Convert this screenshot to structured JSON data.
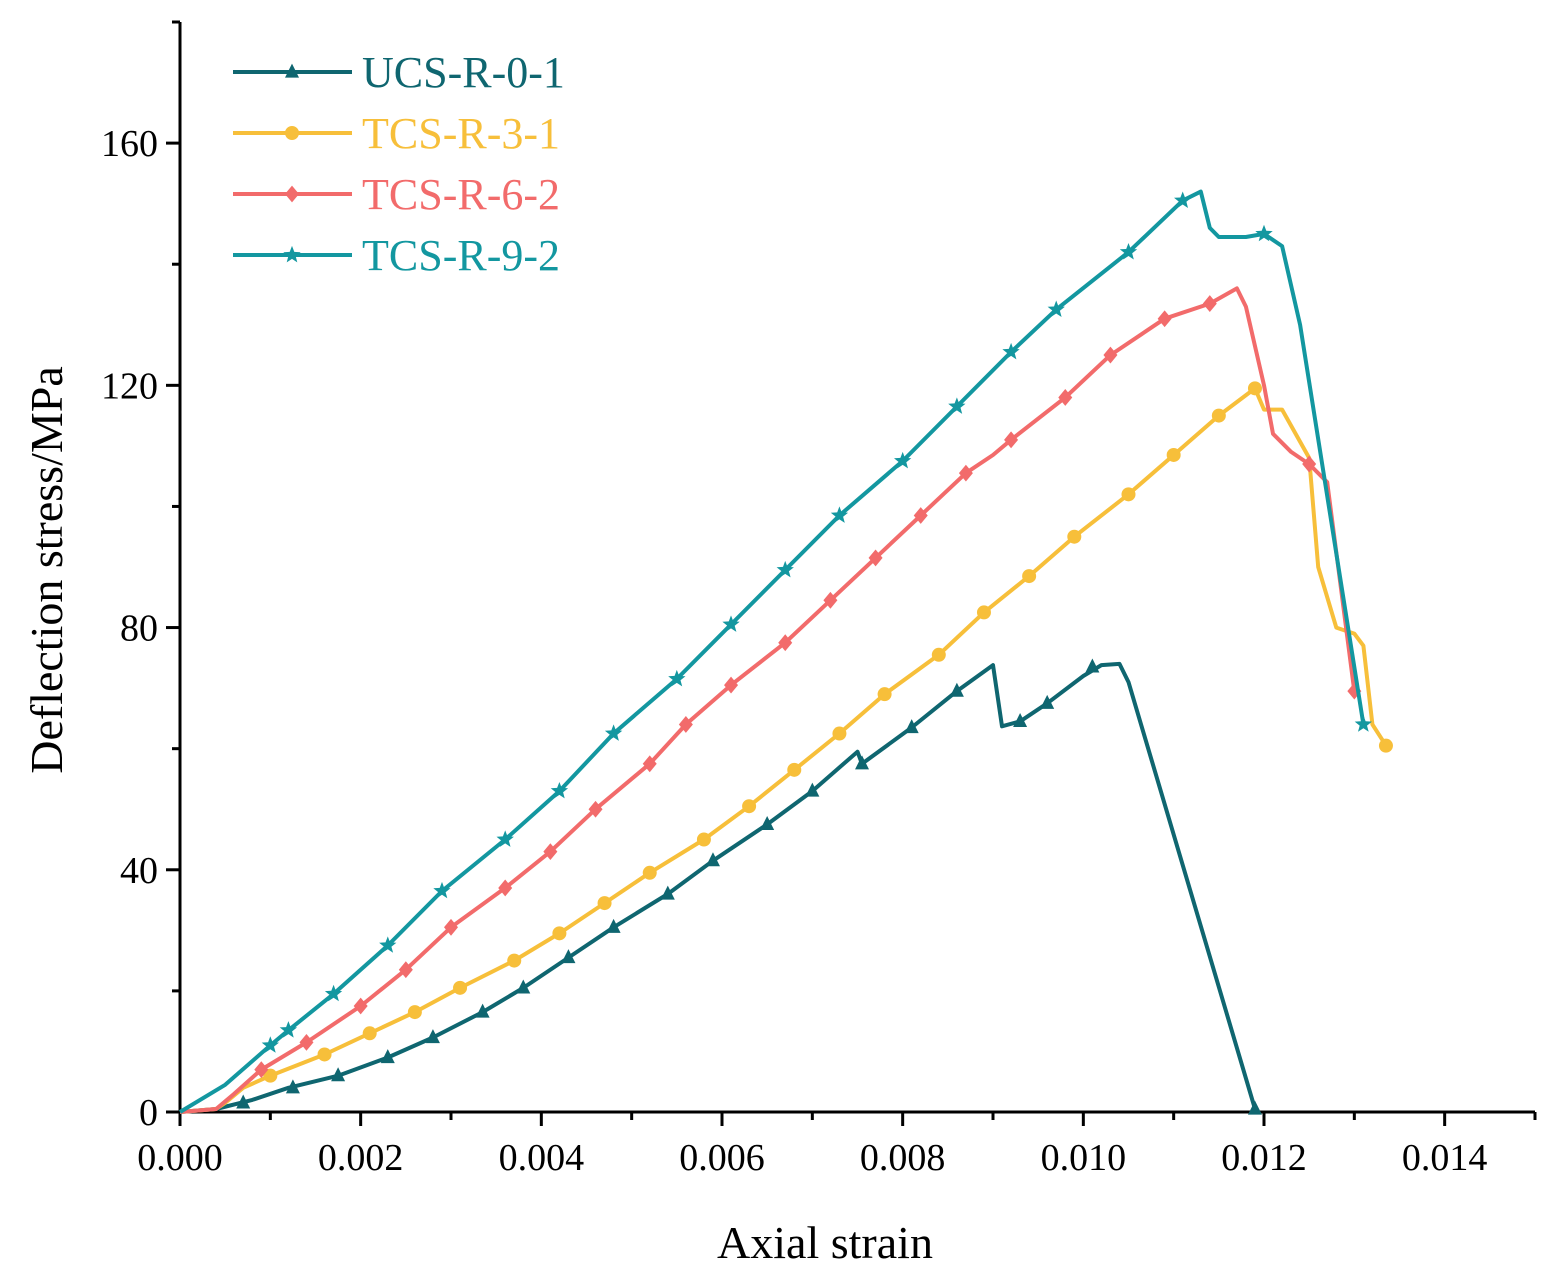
{
  "chart_data": {
    "type": "line",
    "title": "",
    "xlabel": "Axial strain",
    "ylabel": "Deflection stress/MPa",
    "xlim": [
      0,
      0.015
    ],
    "ylim": [
      0,
      180
    ],
    "x_ticks": [
      0.0,
      0.002,
      0.004,
      0.006,
      0.008,
      0.01,
      0.012,
      0.014
    ],
    "x_tick_labels": [
      "0.000",
      "0.002",
      "0.004",
      "0.006",
      "0.008",
      "0.010",
      "0.012",
      "0.014"
    ],
    "y_ticks": [
      0,
      40,
      80,
      120,
      160
    ],
    "y_tick_labels": [
      "0",
      "40",
      "80",
      "120",
      "160"
    ],
    "grid": false,
    "legend_position": "top-left",
    "series": [
      {
        "name": "UCS-R-0-1",
        "color": "#0f6670",
        "marker": "triangle",
        "points": [
          [
            0,
            0
          ],
          [
            0.0004,
            0.5
          ],
          [
            0.0008,
            2
          ],
          [
            0.0012,
            4
          ],
          [
            0.00175,
            6
          ],
          [
            0.0023,
            9
          ],
          [
            0.0028,
            12.3
          ],
          [
            0.00335,
            16.5
          ],
          [
            0.0038,
            20.5
          ],
          [
            0.0043,
            25.5
          ],
          [
            0.0048,
            30.5
          ],
          [
            0.0054,
            36
          ],
          [
            0.0059,
            41.5
          ],
          [
            0.0065,
            47.5
          ],
          [
            0.007,
            53
          ],
          [
            0.0075,
            59.5
          ],
          [
            0.00755,
            57.5
          ],
          [
            0.0081,
            63.5
          ],
          [
            0.0086,
            69.5
          ],
          [
            0.009,
            73.8
          ],
          [
            0.0091,
            63.7
          ],
          [
            0.0093,
            64.5
          ],
          [
            0.0096,
            67.5
          ],
          [
            0.01,
            72
          ],
          [
            0.0102,
            73.8
          ],
          [
            0.0104,
            74
          ],
          [
            0.0105,
            71
          ],
          [
            0.0119,
            0.5
          ]
        ],
        "marker_points": [
          [
            0.0007,
            1.5
          ],
          [
            0.00125,
            4
          ],
          [
            0.00175,
            6
          ],
          [
            0.0023,
            9
          ],
          [
            0.0028,
            12.3
          ],
          [
            0.00335,
            16.5
          ],
          [
            0.0038,
            20.5
          ],
          [
            0.0043,
            25.5
          ],
          [
            0.0048,
            30.5
          ],
          [
            0.0054,
            36
          ],
          [
            0.0059,
            41.5
          ],
          [
            0.0065,
            47.5
          ],
          [
            0.007,
            53
          ],
          [
            0.00755,
            57.5
          ],
          [
            0.0081,
            63.5
          ],
          [
            0.0086,
            69.5
          ],
          [
            0.0093,
            64.5
          ],
          [
            0.0096,
            67.5
          ],
          [
            0.0101,
            73.5
          ],
          [
            0.0119,
            0.5
          ]
        ]
      },
      {
        "name": "TCS-R-3-1",
        "color": "#f7bf3a",
        "marker": "circle",
        "points": [
          [
            0,
            0
          ],
          [
            0.0004,
            0.5
          ],
          [
            0.0005,
            1.5
          ],
          [
            0.0007,
            4
          ],
          [
            0.001,
            6
          ],
          [
            0.0016,
            9.5
          ],
          [
            0.0021,
            13
          ],
          [
            0.0026,
            16.5
          ],
          [
            0.0031,
            20.5
          ],
          [
            0.0037,
            25
          ],
          [
            0.0042,
            29.5
          ],
          [
            0.0047,
            34.5
          ],
          [
            0.0052,
            39.5
          ],
          [
            0.0058,
            45
          ],
          [
            0.0063,
            50.5
          ],
          [
            0.0068,
            56.5
          ],
          [
            0.0073,
            62.5
          ],
          [
            0.0078,
            69
          ],
          [
            0.0084,
            75.5
          ],
          [
            0.0089,
            82.5
          ],
          [
            0.0094,
            88.5
          ],
          [
            0.0099,
            95
          ],
          [
            0.0105,
            102
          ],
          [
            0.011,
            108.5
          ],
          [
            0.0115,
            115
          ],
          [
            0.0119,
            119.5
          ],
          [
            0.012,
            116
          ],
          [
            0.0122,
            116
          ],
          [
            0.0125,
            108
          ],
          [
            0.0126,
            90
          ],
          [
            0.0128,
            80
          ],
          [
            0.013,
            79
          ],
          [
            0.0131,
            77
          ],
          [
            0.0132,
            64
          ],
          [
            0.01335,
            60.5
          ]
        ],
        "marker_points": [
          [
            0.001,
            6
          ],
          [
            0.0016,
            9.5
          ],
          [
            0.0021,
            13
          ],
          [
            0.0026,
            16.5
          ],
          [
            0.0031,
            20.5
          ],
          [
            0.0037,
            25
          ],
          [
            0.0042,
            29.5
          ],
          [
            0.0047,
            34.5
          ],
          [
            0.0052,
            39.5
          ],
          [
            0.0058,
            45
          ],
          [
            0.0063,
            50.5
          ],
          [
            0.0068,
            56.5
          ],
          [
            0.0073,
            62.5
          ],
          [
            0.0078,
            69
          ],
          [
            0.0084,
            75.5
          ],
          [
            0.0089,
            82.5
          ],
          [
            0.0094,
            88.5
          ],
          [
            0.0099,
            95
          ],
          [
            0.0105,
            102
          ],
          [
            0.011,
            108.5
          ],
          [
            0.0115,
            115
          ],
          [
            0.0119,
            119.5
          ],
          [
            0.01335,
            60.5
          ]
        ]
      },
      {
        "name": "TCS-R-6-2",
        "color": "#f26b6b",
        "marker": "diamond",
        "points": [
          [
            0,
            0
          ],
          [
            0.0004,
            0.5
          ],
          [
            0.0006,
            3
          ],
          [
            0.0009,
            7
          ],
          [
            0.0014,
            11.5
          ],
          [
            0.002,
            17.5
          ],
          [
            0.0025,
            23.5
          ],
          [
            0.003,
            30.5
          ],
          [
            0.0036,
            37
          ],
          [
            0.0041,
            43
          ],
          [
            0.0046,
            50
          ],
          [
            0.0052,
            57.5
          ],
          [
            0.0056,
            64
          ],
          [
            0.0061,
            70.5
          ],
          [
            0.0067,
            77.5
          ],
          [
            0.0072,
            84.5
          ],
          [
            0.0077,
            91.5
          ],
          [
            0.0082,
            98.5
          ],
          [
            0.0087,
            105.5
          ],
          [
            0.009,
            108.5
          ],
          [
            0.0092,
            111
          ],
          [
            0.0098,
            118
          ],
          [
            0.0103,
            125
          ],
          [
            0.0109,
            131
          ],
          [
            0.0114,
            133.5
          ],
          [
            0.0117,
            136
          ],
          [
            0.0118,
            133
          ],
          [
            0.012,
            120
          ],
          [
            0.0121,
            112
          ],
          [
            0.0123,
            109
          ],
          [
            0.0125,
            107
          ],
          [
            0.0127,
            104
          ],
          [
            0.013,
            69.5
          ]
        ],
        "marker_points": [
          [
            0.0009,
            7
          ],
          [
            0.0014,
            11.5
          ],
          [
            0.002,
            17.5
          ],
          [
            0.0025,
            23.5
          ],
          [
            0.003,
            30.5
          ],
          [
            0.0036,
            37
          ],
          [
            0.0041,
            43
          ],
          [
            0.0046,
            50
          ],
          [
            0.0052,
            57.5
          ],
          [
            0.0056,
            64
          ],
          [
            0.0061,
            70.5
          ],
          [
            0.0067,
            77.5
          ],
          [
            0.0072,
            84.5
          ],
          [
            0.0077,
            91.5
          ],
          [
            0.0082,
            98.5
          ],
          [
            0.0087,
            105.5
          ],
          [
            0.0092,
            111
          ],
          [
            0.0098,
            118
          ],
          [
            0.0103,
            125
          ],
          [
            0.0109,
            131
          ],
          [
            0.0114,
            133.5
          ],
          [
            0.0125,
            107
          ],
          [
            0.013,
            69.5
          ]
        ]
      },
      {
        "name": "TCS-R-9-2",
        "color": "#1397a0",
        "marker": "star",
        "points": [
          [
            0,
            0
          ],
          [
            0.0005,
            4.5
          ],
          [
            0.001,
            11
          ],
          [
            0.0012,
            13.5
          ],
          [
            0.0017,
            19.5
          ],
          [
            0.0023,
            27.5
          ],
          [
            0.0029,
            36.5
          ],
          [
            0.0036,
            45
          ],
          [
            0.0042,
            53
          ],
          [
            0.0048,
            62.5
          ],
          [
            0.0055,
            71.5
          ],
          [
            0.0061,
            80.5
          ],
          [
            0.0067,
            89.5
          ],
          [
            0.0073,
            98.5
          ],
          [
            0.008,
            107.5
          ],
          [
            0.0086,
            116.5
          ],
          [
            0.0092,
            125.5
          ],
          [
            0.0097,
            132.5
          ],
          [
            0.0105,
            142
          ],
          [
            0.0111,
            150.5
          ],
          [
            0.0113,
            152
          ],
          [
            0.0114,
            146
          ],
          [
            0.0115,
            144.5
          ],
          [
            0.0118,
            144.5
          ],
          [
            0.012,
            145
          ],
          [
            0.0122,
            143
          ],
          [
            0.0124,
            130
          ],
          [
            0.0131,
            64
          ]
        ],
        "marker_points": [
          [
            0.001,
            11
          ],
          [
            0.0012,
            13.5
          ],
          [
            0.0017,
            19.5
          ],
          [
            0.0023,
            27.5
          ],
          [
            0.0029,
            36.5
          ],
          [
            0.0036,
            45
          ],
          [
            0.0042,
            53
          ],
          [
            0.0048,
            62.5
          ],
          [
            0.0055,
            71.5
          ],
          [
            0.0061,
            80.5
          ],
          [
            0.0067,
            89.5
          ],
          [
            0.0073,
            98.5
          ],
          [
            0.008,
            107.5
          ],
          [
            0.0086,
            116.5
          ],
          [
            0.0092,
            125.5
          ],
          [
            0.0097,
            132.5
          ],
          [
            0.0105,
            142
          ],
          [
            0.0111,
            150.5
          ],
          [
            0.012,
            145
          ],
          [
            0.0131,
            64
          ]
        ]
      }
    ]
  }
}
